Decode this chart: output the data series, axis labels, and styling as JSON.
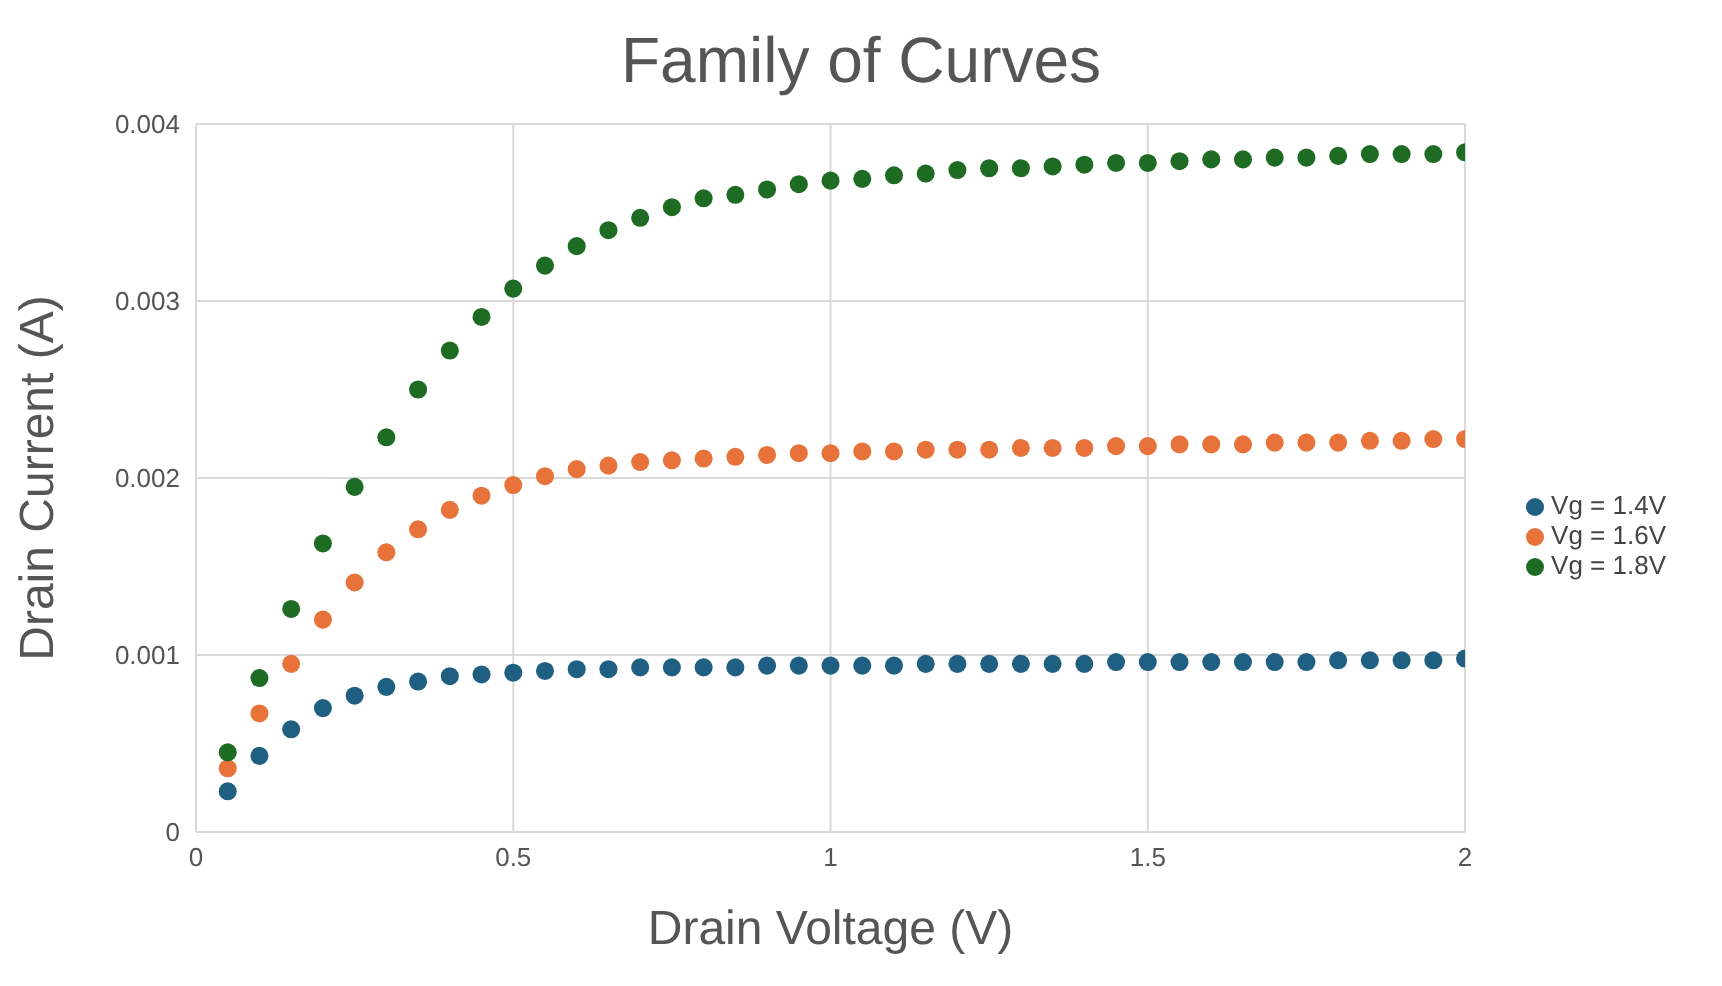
{
  "chart_data": {
    "type": "scatter",
    "title": "Family of Curves",
    "xlabel": "Drain Voltage (V)",
    "ylabel": "Drain Current (A)",
    "x": [
      0.05,
      0.1,
      0.15,
      0.2,
      0.25,
      0.3,
      0.35,
      0.4,
      0.45,
      0.5,
      0.55,
      0.6,
      0.65,
      0.7,
      0.75,
      0.8,
      0.85,
      0.9,
      0.95,
      1.0,
      1.05,
      1.1,
      1.15,
      1.2,
      1.25,
      1.3,
      1.35,
      1.4,
      1.45,
      1.5,
      1.55,
      1.6,
      1.65,
      1.7,
      1.75,
      1.8,
      1.85,
      1.9,
      1.95,
      2.0
    ],
    "series": [
      {
        "name": "Vg = 1.4V",
        "color": "#1f5f82",
        "values": [
          0.00023,
          0.00043,
          0.00058,
          0.0007,
          0.00077,
          0.00082,
          0.00085,
          0.00088,
          0.00089,
          0.0009,
          0.00091,
          0.00092,
          0.00092,
          0.00093,
          0.00093,
          0.00093,
          0.00093,
          0.00094,
          0.00094,
          0.00094,
          0.00094,
          0.00094,
          0.00095,
          0.00095,
          0.00095,
          0.00095,
          0.00095,
          0.00095,
          0.00096,
          0.00096,
          0.00096,
          0.00096,
          0.00096,
          0.00096,
          0.00096,
          0.00097,
          0.00097,
          0.00097,
          0.00097,
          0.00098
        ]
      },
      {
        "name": "Vg = 1.6V",
        "color": "#e8733a",
        "values": [
          0.00036,
          0.00067,
          0.00095,
          0.0012,
          0.00141,
          0.00158,
          0.00171,
          0.00182,
          0.0019,
          0.00196,
          0.00201,
          0.00205,
          0.00207,
          0.00209,
          0.0021,
          0.00211,
          0.00212,
          0.00213,
          0.00214,
          0.00214,
          0.00215,
          0.00215,
          0.00216,
          0.00216,
          0.00216,
          0.00217,
          0.00217,
          0.00217,
          0.00218,
          0.00218,
          0.00219,
          0.00219,
          0.00219,
          0.0022,
          0.0022,
          0.0022,
          0.00221,
          0.00221,
          0.00222,
          0.00222
        ]
      },
      {
        "name": "Vg = 1.8V",
        "color": "#1e6b24",
        "values": [
          0.00045,
          0.00087,
          0.00126,
          0.00163,
          0.00195,
          0.00223,
          0.0025,
          0.00272,
          0.00291,
          0.00307,
          0.0032,
          0.00331,
          0.0034,
          0.00347,
          0.00353,
          0.00358,
          0.0036,
          0.00363,
          0.00366,
          0.00368,
          0.00369,
          0.00371,
          0.00372,
          0.00374,
          0.00375,
          0.00375,
          0.00376,
          0.00377,
          0.00378,
          0.00378,
          0.00379,
          0.0038,
          0.0038,
          0.00381,
          0.00381,
          0.00382,
          0.00383,
          0.00383,
          0.00383,
          0.00384
        ]
      }
    ],
    "xlim": [
      0,
      2
    ],
    "xticks": [
      0,
      0.5,
      1,
      1.5,
      2
    ],
    "ylim": [
      0,
      0.004
    ],
    "yticks": [
      0,
      0.001,
      0.002,
      0.003,
      0.004
    ],
    "grid": true,
    "legend": "right",
    "marker": "circle"
  }
}
